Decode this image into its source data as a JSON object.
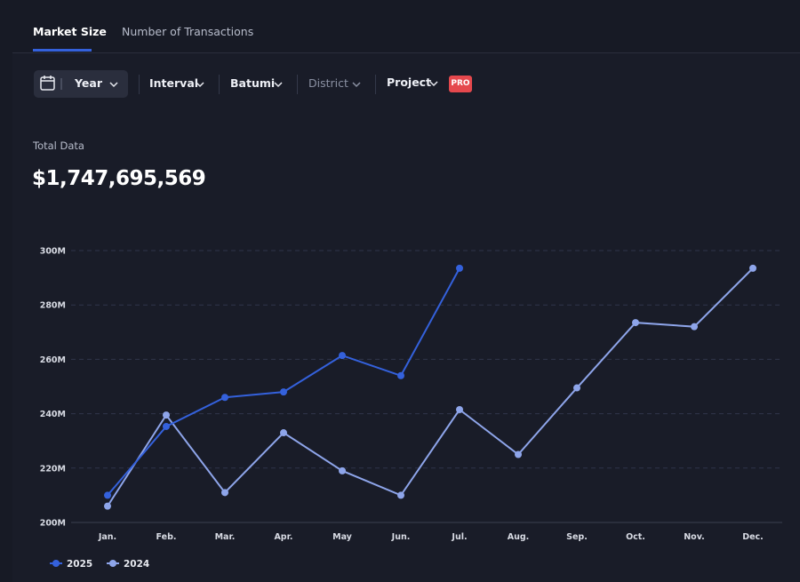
{
  "tabs": [
    "Market Size",
    "Number of Transactions"
  ],
  "filters": {
    "period": "Year",
    "interval": "Interval",
    "city": "Batumi",
    "district": "District",
    "project": "Project",
    "badge": "PRO"
  },
  "summary": {
    "label": "Total Data",
    "value": "$1,747,695,569"
  },
  "chart_data": {
    "type": "line",
    "categories": [
      "Jan.",
      "Feb.",
      "Mar.",
      "Apr.",
      "May",
      "Jun.",
      "Jul.",
      "Aug.",
      "Sep.",
      "Oct.",
      "Nov.",
      "Dec."
    ],
    "series": [
      {
        "name": "2025",
        "color": "#3461dc",
        "values": [
          210000000,
          235300000,
          246000000,
          248000000,
          261400000,
          254000000,
          293500000,
          null,
          null,
          null,
          null,
          null
        ]
      },
      {
        "name": "2024",
        "color": "#8ea5ea",
        "values": [
          206000000,
          239500000,
          211000000,
          233000000,
          219000000,
          210000000,
          241500000,
          225000000,
          249500000,
          273500000,
          272000000,
          293500000
        ]
      }
    ],
    "ylim": [
      200000000,
      300000000
    ],
    "yticks": [
      {
        "value": 200000000,
        "label": "200M"
      },
      {
        "value": 220000000,
        "label": "220M"
      },
      {
        "value": 240000000,
        "label": "240M"
      },
      {
        "value": 260000000,
        "label": "260M"
      },
      {
        "value": 280000000,
        "label": "280M"
      },
      {
        "value": 300000000,
        "label": "300M"
      }
    ],
    "grid": true,
    "legend": "bottom-left"
  }
}
